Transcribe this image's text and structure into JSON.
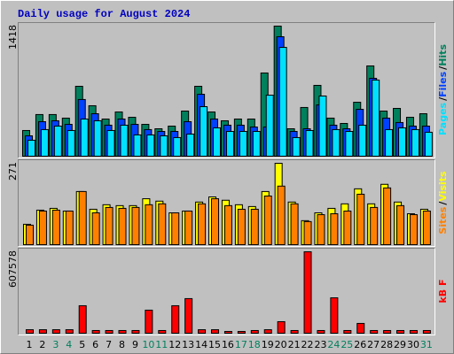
{
  "chart_data": [
    {
      "type": "bar",
      "title": "Daily usage for August 2024",
      "ylim": [
        0,
        1418
      ],
      "yticks": [
        1418
      ],
      "legend_separator": "/",
      "series": [
        {
          "name": "Hits",
          "color": "#00805c",
          "values": [
            280,
            454,
            454,
            415,
            762,
            550,
            405,
            482,
            424,
            347,
            299,
            328,
            492,
            762,
            482,
            386,
            405,
            405,
            907,
            1418,
            299,
            531,
            772,
            415,
            357,
            588,
            984,
            492,
            521,
            424,
            463
          ]
        },
        {
          "name": "Files",
          "color": "#0040ff",
          "values": [
            222,
            376,
            386,
            347,
            618,
            463,
            338,
            405,
            347,
            290,
            270,
            270,
            376,
            675,
            405,
            338,
            338,
            318,
            318,
            1302,
            270,
            299,
            559,
            338,
            299,
            511,
            849,
            415,
            367,
            328,
            328
          ]
        },
        {
          "name": "Pages",
          "color": "#00e0ff",
          "values": [
            174,
            290,
            328,
            280,
            405,
            386,
            280,
            338,
            232,
            232,
            222,
            203,
            241,
            540,
            309,
            270,
            270,
            270,
            665,
            1186,
            203,
            280,
            656,
            290,
            270,
            338,
            830,
            290,
            309,
            290,
            261
          ]
        }
      ]
    },
    {
      "type": "bar",
      "ylim": [
        0,
        271
      ],
      "yticks": [
        271
      ],
      "legend_separator": "/",
      "series": [
        {
          "name": "Visits",
          "color": "#ffff00",
          "values": [
            68,
            115,
            121,
            112,
            177,
            118,
            133,
            130,
            130,
            153,
            145,
            106,
            112,
            142,
            159,
            148,
            133,
            127,
            177,
            271,
            142,
            80,
            106,
            121,
            136,
            186,
            136,
            201,
            142,
            103,
            118
          ]
        },
        {
          "name": "Sites",
          "color": "#ff8000",
          "values": [
            65,
            112,
            115,
            112,
            177,
            106,
            124,
            121,
            124,
            133,
            136,
            106,
            112,
            136,
            153,
            130,
            118,
            118,
            162,
            195,
            136,
            77,
            100,
            103,
            112,
            168,
            124,
            189,
            130,
            100,
            112
          ]
        }
      ]
    },
    {
      "type": "bar",
      "ylim": [
        0,
        607578
      ],
      "yticks": [
        607578
      ],
      "categories": [
        "1",
        "2",
        "3",
        "4",
        "5",
        "6",
        "7",
        "8",
        "9",
        "10",
        "11",
        "12",
        "13",
        "14",
        "15",
        "16",
        "17",
        "18",
        "19",
        "20",
        "21",
        "22",
        "23",
        "24",
        "25",
        "26",
        "27",
        "28",
        "29",
        "30",
        "31"
      ],
      "category_colors": [
        "#000000",
        "#000000",
        "#00805c",
        "#00805c",
        "#000000",
        "#000000",
        "#000000",
        "#000000",
        "#000000",
        "#00805c",
        "#00805c",
        "#000000",
        "#000000",
        "#000000",
        "#000000",
        "#000000",
        "#00805c",
        "#00805c",
        "#000000",
        "#000000",
        "#000000",
        "#000000",
        "#000000",
        "#00805c",
        "#00805c",
        "#000000",
        "#000000",
        "#000000",
        "#000000",
        "#000000",
        "#00805c"
      ],
      "series": [
        {
          "name": "kB F",
          "color": "#ff0000",
          "values": [
            26000,
            26000,
            26000,
            26000,
            205000,
            20000,
            20000,
            20000,
            20000,
            172000,
            20000,
            205000,
            258000,
            26000,
            26000,
            13000,
            13000,
            20000,
            26000,
            86000,
            20000,
            607578,
            20000,
            264000,
            20000,
            73000,
            20000,
            20000,
            20000,
            20000,
            20000
          ]
        }
      ]
    }
  ]
}
